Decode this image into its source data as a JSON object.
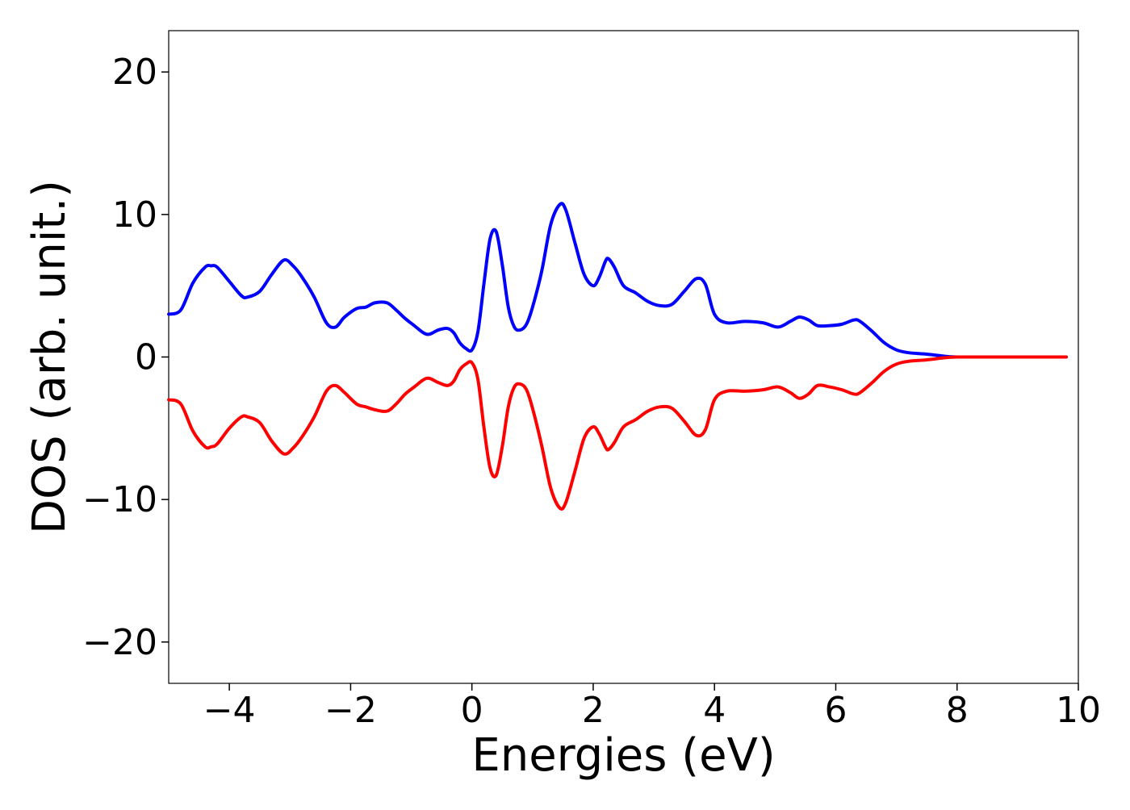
{
  "chart_data": {
    "type": "line",
    "title": "",
    "xlabel": "Energies (eV)",
    "ylabel": "DOS (arb. unit.)",
    "xlim": [
      -5,
      10
    ],
    "ylim": [
      -22.9,
      22.9
    ],
    "xticks": [
      -4,
      -2,
      0,
      2,
      4,
      6,
      8,
      10
    ],
    "xtick_labels": [
      "−4",
      "−2",
      "0",
      "2",
      "4",
      "6",
      "8",
      "10"
    ],
    "yticks": [
      -20,
      -10,
      0,
      10,
      20
    ],
    "ytick_labels": [
      "−20",
      "−10",
      "0",
      "10",
      "20"
    ],
    "grid": false,
    "legend": "none",
    "series": [
      {
        "color": "#0000ff",
        "x": [
          -5.0,
          -4.8,
          -4.6,
          -4.4,
          -4.3,
          -4.2,
          -4.0,
          -3.8,
          -3.7,
          -3.5,
          -3.3,
          -3.1,
          -2.95,
          -2.8,
          -2.6,
          -2.4,
          -2.25,
          -2.1,
          -1.9,
          -1.75,
          -1.6,
          -1.4,
          -1.25,
          -1.1,
          -0.95,
          -0.8,
          -0.7,
          -0.55,
          -0.4,
          -0.3,
          -0.2,
          -0.1,
          0.0,
          0.1,
          0.2,
          0.3,
          0.4,
          0.5,
          0.6,
          0.7,
          0.8,
          0.9,
          1.0,
          1.15,
          1.3,
          1.45,
          1.55,
          1.7,
          1.85,
          2.0,
          2.1,
          2.2,
          2.25,
          2.35,
          2.5,
          2.7,
          2.9,
          3.1,
          3.3,
          3.5,
          3.7,
          3.85,
          4.0,
          4.2,
          4.5,
          4.8,
          5.05,
          5.25,
          5.4,
          5.55,
          5.7,
          5.9,
          6.1,
          6.3,
          6.4,
          6.6,
          6.8,
          7.0,
          7.2,
          7.5,
          7.8,
          8.0,
          8.5,
          9.0,
          9.5,
          9.8
        ],
        "y": [
          3.0,
          3.3,
          5.2,
          6.3,
          6.4,
          6.3,
          5.3,
          4.3,
          4.2,
          4.6,
          5.8,
          6.8,
          6.4,
          5.6,
          4.2,
          2.4,
          2.1,
          2.8,
          3.4,
          3.5,
          3.8,
          3.8,
          3.3,
          2.7,
          2.2,
          1.7,
          1.6,
          1.9,
          2.0,
          1.7,
          1.0,
          0.6,
          0.5,
          1.8,
          5.2,
          8.3,
          8.8,
          6.5,
          3.5,
          2.1,
          1.9,
          2.3,
          3.5,
          6.0,
          9.3,
          10.7,
          10.3,
          8.0,
          5.8,
          5.0,
          5.6,
          6.7,
          6.9,
          6.3,
          5.0,
          4.5,
          3.9,
          3.6,
          3.7,
          4.6,
          5.5,
          5.1,
          3.0,
          2.4,
          2.5,
          2.4,
          2.1,
          2.5,
          2.8,
          2.6,
          2.2,
          2.2,
          2.3,
          2.6,
          2.5,
          1.8,
          1.0,
          0.5,
          0.3,
          0.2,
          0.05,
          0.0,
          0.0,
          0.0,
          0.0,
          0.0
        ]
      },
      {
        "color": "#ff0000",
        "x": [
          -5.0,
          -4.8,
          -4.6,
          -4.4,
          -4.3,
          -4.2,
          -4.0,
          -3.8,
          -3.7,
          -3.5,
          -3.3,
          -3.1,
          -2.95,
          -2.8,
          -2.6,
          -2.4,
          -2.25,
          -2.1,
          -1.9,
          -1.75,
          -1.6,
          -1.4,
          -1.25,
          -1.1,
          -0.95,
          -0.8,
          -0.7,
          -0.55,
          -0.4,
          -0.3,
          -0.2,
          -0.1,
          0.0,
          0.1,
          0.2,
          0.3,
          0.4,
          0.5,
          0.6,
          0.7,
          0.8,
          0.9,
          1.0,
          1.15,
          1.3,
          1.45,
          1.55,
          1.7,
          1.85,
          2.0,
          2.1,
          2.2,
          2.25,
          2.35,
          2.5,
          2.7,
          2.9,
          3.1,
          3.3,
          3.5,
          3.7,
          3.85,
          4.0,
          4.2,
          4.5,
          4.8,
          5.05,
          5.25,
          5.4,
          5.55,
          5.7,
          5.9,
          6.1,
          6.3,
          6.4,
          6.6,
          6.8,
          7.0,
          7.2,
          7.5,
          7.8,
          8.0,
          8.5,
          9.0,
          9.5,
          9.8
        ],
        "y": [
          -3.0,
          -3.3,
          -5.2,
          -6.3,
          -6.3,
          -6.1,
          -5.0,
          -4.2,
          -4.2,
          -4.6,
          -5.9,
          -6.8,
          -6.4,
          -5.6,
          -4.2,
          -2.4,
          -2.0,
          -2.5,
          -3.3,
          -3.5,
          -3.7,
          -3.8,
          -3.3,
          -2.6,
          -2.1,
          -1.6,
          -1.5,
          -1.8,
          -2.0,
          -1.7,
          -0.9,
          -0.5,
          -0.4,
          -1.6,
          -5.0,
          -7.8,
          -8.3,
          -6.3,
          -3.5,
          -2.1,
          -1.9,
          -2.3,
          -3.6,
          -6.2,
          -9.2,
          -10.6,
          -10.2,
          -8.0,
          -5.7,
          -4.9,
          -5.4,
          -6.3,
          -6.5,
          -6.0,
          -4.9,
          -4.4,
          -3.8,
          -3.5,
          -3.6,
          -4.5,
          -5.5,
          -5.1,
          -3.0,
          -2.4,
          -2.4,
          -2.3,
          -2.1,
          -2.5,
          -2.9,
          -2.6,
          -2.0,
          -2.1,
          -2.3,
          -2.6,
          -2.5,
          -1.8,
          -1.0,
          -0.5,
          -0.3,
          -0.2,
          -0.05,
          0.0,
          0.0,
          0.0,
          0.0,
          0.0
        ]
      }
    ]
  }
}
